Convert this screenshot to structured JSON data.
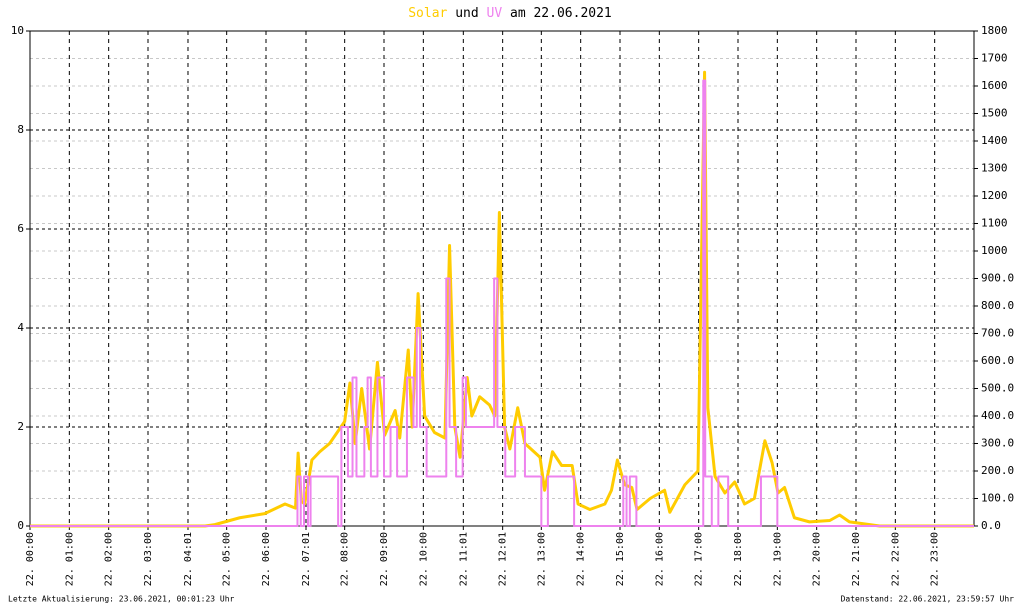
{
  "chart_data": {
    "type": "line",
    "title_middle": "und",
    "title_end": "am 22.06.2021",
    "footer_left": "Letzte Aktualisierung: 23.06.2021, 00:01:23 Uhr",
    "footer_right": "Datenstand: 22.06.2021, 23:59:57 Uhr",
    "xlim": [
      "00:00",
      "24:00"
    ],
    "xticks": [
      {
        "value": "00:00",
        "label": "22. 00:00"
      },
      {
        "value": "01:00",
        "label": "22. 01:00"
      },
      {
        "value": "02:00",
        "label": "22. 02:00"
      },
      {
        "value": "03:00",
        "label": "22. 03:00"
      },
      {
        "value": "04:01",
        "label": "22. 04:01"
      },
      {
        "value": "05:00",
        "label": "22. 05:00"
      },
      {
        "value": "06:00",
        "label": "22. 06:00"
      },
      {
        "value": "07:01",
        "label": "22. 07:01"
      },
      {
        "value": "08:00",
        "label": "22. 08:00"
      },
      {
        "value": "09:00",
        "label": "22. 09:00"
      },
      {
        "value": "10:00",
        "label": "22. 10:00"
      },
      {
        "value": "11:01",
        "label": "22. 11:01"
      },
      {
        "value": "12:01",
        "label": "22. 12:01"
      },
      {
        "value": "13:00",
        "label": "22. 13:00"
      },
      {
        "value": "14:00",
        "label": "22. 14:00"
      },
      {
        "value": "15:00",
        "label": "22. 15:00"
      },
      {
        "value": "16:00",
        "label": "22. 16:00"
      },
      {
        "value": "17:00",
        "label": "22. 17:00"
      },
      {
        "value": "18:00",
        "label": "22. 18:00"
      },
      {
        "value": "19:00",
        "label": "22. 19:00"
      },
      {
        "value": "20:00",
        "label": "22. 20:00"
      },
      {
        "value": "21:00",
        "label": "22. 21:00"
      },
      {
        "value": "22:00",
        "label": "22. 22:00"
      },
      {
        "value": "23:00",
        "label": "22. 23:00"
      }
    ],
    "ylim": [
      0,
      10
    ],
    "yticks": [
      0,
      2,
      4,
      6,
      8,
      10
    ],
    "y2lim": [
      0,
      1800
    ],
    "y2ticks": [
      {
        "value": 0,
        "label": "0.0"
      },
      {
        "value": 100,
        "label": "100.0"
      },
      {
        "value": 200,
        "label": "200.0"
      },
      {
        "value": 300,
        "label": "300.0"
      },
      {
        "value": 400,
        "label": "400.0"
      },
      {
        "value": 500,
        "label": "500.0"
      },
      {
        "value": 600,
        "label": "600.0"
      },
      {
        "value": 700,
        "label": "700.0"
      },
      {
        "value": 800,
        "label": "800.0"
      },
      {
        "value": 900,
        "label": "900.0"
      },
      1000,
      1100,
      1200,
      1300,
      1400,
      1500,
      1600,
      1700,
      1800
    ],
    "grid": true,
    "series": [
      {
        "name": "Solar",
        "color": "#ffcc00",
        "axis": "y2",
        "x": [
          "00:00",
          "04:27",
          "04:42",
          "05:20",
          "05:58",
          "06:29",
          "06:45",
          "06:49",
          "06:54",
          "06:59",
          "07:10",
          "07:22",
          "07:37",
          "08:00",
          "08:08",
          "08:16",
          "08:26",
          "08:38",
          "08:50",
          "09:01",
          "09:17",
          "09:24",
          "09:37",
          "09:43",
          "09:52",
          "10:02",
          "10:17",
          "10:33",
          "10:40",
          "10:48",
          "10:56",
          "11:07",
          "11:14",
          "11:26",
          "11:41",
          "11:49",
          "11:56",
          "12:04",
          "12:12",
          "12:24",
          "12:35",
          "12:58",
          "13:05",
          "13:17",
          "13:31",
          "13:47",
          "13:56",
          "14:14",
          "14:37",
          "14:47",
          "14:56",
          "15:07",
          "15:18",
          "15:26",
          "15:46",
          "16:08",
          "16:16",
          "16:39",
          "16:59",
          "17:09",
          "17:14",
          "17:25",
          "17:40",
          "17:55",
          "18:10",
          "18:25",
          "18:41",
          "18:52",
          "19:01",
          "19:11",
          "19:26",
          "19:49",
          "20:20",
          "20:35",
          "20:50",
          "21:21",
          "21:36",
          "24:00"
        ],
        "values": [
          0,
          0,
          5,
          30,
          45,
          80,
          65,
          265,
          90,
          80,
          240,
          270,
          300,
          380,
          520,
          300,
          500,
          280,
          595,
          330,
          420,
          320,
          640,
          360,
          845,
          400,
          340,
          320,
          1020,
          360,
          250,
          540,
          400,
          470,
          440,
          400,
          1140,
          360,
          280,
          430,
          300,
          250,
          130,
          270,
          220,
          220,
          80,
          60,
          80,
          130,
          240,
          150,
          140,
          60,
          100,
          130,
          50,
          150,
          200,
          1650,
          430,
          180,
          120,
          160,
          80,
          100,
          310,
          230,
          120,
          140,
          30,
          15,
          20,
          40,
          15,
          5,
          0,
          0
        ]
      },
      {
        "name": "UV",
        "color": "#ee82ee",
        "x": [
          "00:00",
          "06:48",
          "06:48",
          "06:53",
          "06:53",
          "06:58",
          "06:58",
          "07:04",
          "07:04",
          "07:08",
          "07:08",
          "07:50",
          "07:50",
          "07:55",
          "07:55",
          "08:05",
          "08:05",
          "08:12",
          "08:12",
          "08:18",
          "08:18",
          "08:30",
          "08:30",
          "08:35",
          "08:35",
          "08:40",
          "08:40",
          "08:50",
          "08:50",
          "09:00",
          "09:00",
          "09:10",
          "09:10",
          "09:20",
          "09:20",
          "09:35",
          "09:35",
          "09:45",
          "09:45",
          "09:50",
          "09:50",
          "09:55",
          "09:55",
          "10:05",
          "10:05",
          "10:35",
          "10:35",
          "10:40",
          "10:40",
          "10:50",
          "10:50",
          "11:00",
          "11:00",
          "11:05",
          "11:05",
          "11:48",
          "11:48",
          "11:53",
          "11:53",
          "12:05",
          "12:05",
          "12:20",
          "12:20",
          "12:35",
          "12:35",
          "13:00",
          "13:00",
          "13:10",
          "13:10",
          "13:50",
          "13:50",
          "15:05",
          "15:05",
          "15:10",
          "15:10",
          "15:15",
          "15:15",
          "15:25",
          "15:25",
          "17:07",
          "17:07",
          "17:10",
          "17:10",
          "17:20",
          "17:20",
          "17:30",
          "17:30",
          "17:45",
          "17:45",
          "18:35",
          "18:35",
          "19:00",
          "19:00",
          "24:00"
        ],
        "values": [
          0,
          0,
          1,
          1,
          0,
          0,
          1,
          1,
          0,
          0,
          1,
          1,
          0,
          0,
          2,
          2,
          1,
          1,
          3,
          3,
          1,
          1,
          2,
          2,
          3,
          3,
          1,
          1,
          3,
          3,
          1,
          1,
          2,
          2,
          1,
          1,
          3,
          3,
          2,
          2,
          4,
          4,
          2,
          2,
          1,
          1,
          5,
          5,
          2,
          2,
          1,
          1,
          3,
          3,
          2,
          2,
          5,
          5,
          2,
          2,
          1,
          1,
          2,
          2,
          1,
          1,
          0,
          0,
          1,
          1,
          0,
          0,
          1,
          1,
          0,
          0,
          1,
          1,
          0,
          0,
          9,
          9,
          1,
          1,
          0,
          0,
          1,
          1,
          0,
          0,
          1,
          1,
          0,
          0
        ]
      }
    ]
  }
}
